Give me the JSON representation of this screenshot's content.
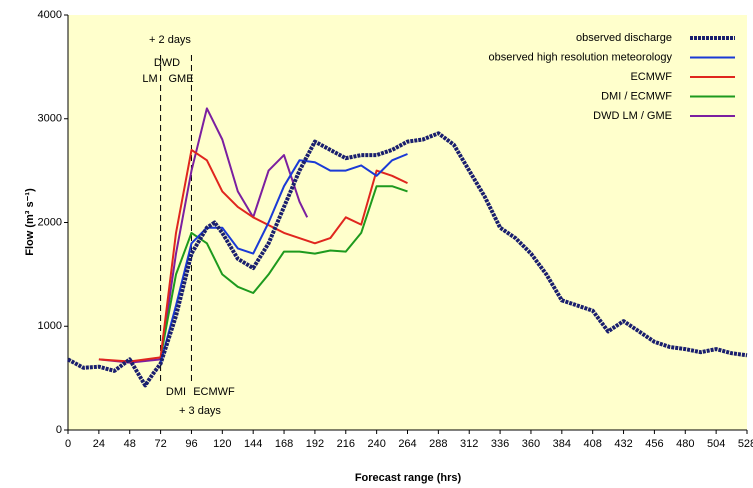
{
  "chart_data": {
    "type": "line",
    "xlabel": "Forecast range (hrs)",
    "ylabel": "Flow (m³ s⁻¹)",
    "xlim": [
      0,
      528
    ],
    "ylim": [
      0,
      4000
    ],
    "xticks": [
      0,
      24,
      48,
      72,
      96,
      120,
      144,
      168,
      192,
      216,
      240,
      264,
      288,
      312,
      336,
      360,
      384,
      408,
      432,
      456,
      480,
      504,
      528
    ],
    "yticks": [
      0,
      1000,
      2000,
      3000,
      4000
    ],
    "vlines": [
      72,
      96
    ],
    "annotations": [
      "+ 2 days",
      "DWD",
      "LM",
      "GME",
      "DMI",
      "ECMWF",
      "+ 3 days"
    ],
    "legend": "upper right",
    "series": [
      {
        "name": "observed discharge",
        "color": "#1a1f6e",
        "x": [
          0,
          12,
          24,
          36,
          48,
          60,
          66,
          72,
          84,
          96,
          108,
          114,
          120,
          132,
          144,
          156,
          168,
          180,
          192,
          204,
          216,
          228,
          240,
          252,
          264,
          276,
          288,
          300,
          312,
          324,
          336,
          348,
          360,
          372,
          384,
          396,
          408,
          420,
          432,
          444,
          456,
          468,
          480,
          492,
          504,
          516,
          528
        ],
        "values": [
          680,
          600,
          610,
          570,
          680,
          430,
          540,
          640,
          1100,
          1700,
          1950,
          2000,
          1900,
          1650,
          1560,
          1800,
          2150,
          2500,
          2780,
          2700,
          2620,
          2650,
          2650,
          2700,
          2780,
          2800,
          2860,
          2750,
          2500,
          2250,
          1950,
          1850,
          1700,
          1500,
          1250,
          1200,
          1150,
          950,
          1050,
          950,
          850,
          800,
          780,
          750,
          780,
          740,
          720
        ]
      },
      {
        "name": "observed high resolution meteorology",
        "color": "#1a3ad6",
        "x": [
          72,
          84,
          96,
          108,
          120,
          132,
          144,
          156,
          168,
          180,
          192,
          204,
          216,
          228,
          240,
          252,
          264
        ],
        "values": [
          650,
          1200,
          1800,
          1950,
          1950,
          1750,
          1700,
          2000,
          2350,
          2600,
          2580,
          2500,
          2500,
          2550,
          2450,
          2600,
          2660
        ]
      },
      {
        "name": "ECMWF",
        "color": "#e0261e",
        "x": [
          24,
          48,
          72,
          84,
          96,
          108,
          120,
          132,
          144,
          168,
          192,
          204,
          216,
          228,
          240,
          252,
          264
        ],
        "values": [
          680,
          660,
          700,
          1900,
          2700,
          2600,
          2300,
          2150,
          2050,
          1900,
          1800,
          1850,
          2050,
          1980,
          2500,
          2450,
          2380
        ]
      },
      {
        "name": "DMI / ECMWF",
        "color": "#1e9a1e",
        "x": [
          72,
          84,
          96,
          108,
          120,
          132,
          144,
          156,
          168,
          180,
          192,
          204,
          216,
          228,
          240,
          252,
          264
        ],
        "values": [
          700,
          1500,
          1900,
          1800,
          1500,
          1380,
          1320,
          1500,
          1720,
          1720,
          1700,
          1730,
          1720,
          1900,
          2350,
          2350,
          2300
        ]
      },
      {
        "name": "DWD LM / GME",
        "color": "#7b1fa0",
        "x": [
          24,
          48,
          72,
          84,
          96,
          108,
          120,
          132,
          144,
          156,
          168,
          180,
          186
        ],
        "values": [
          680,
          650,
          680,
          1700,
          2500,
          3100,
          2800,
          2300,
          2050,
          2500,
          2650,
          2200,
          2050
        ]
      }
    ]
  }
}
